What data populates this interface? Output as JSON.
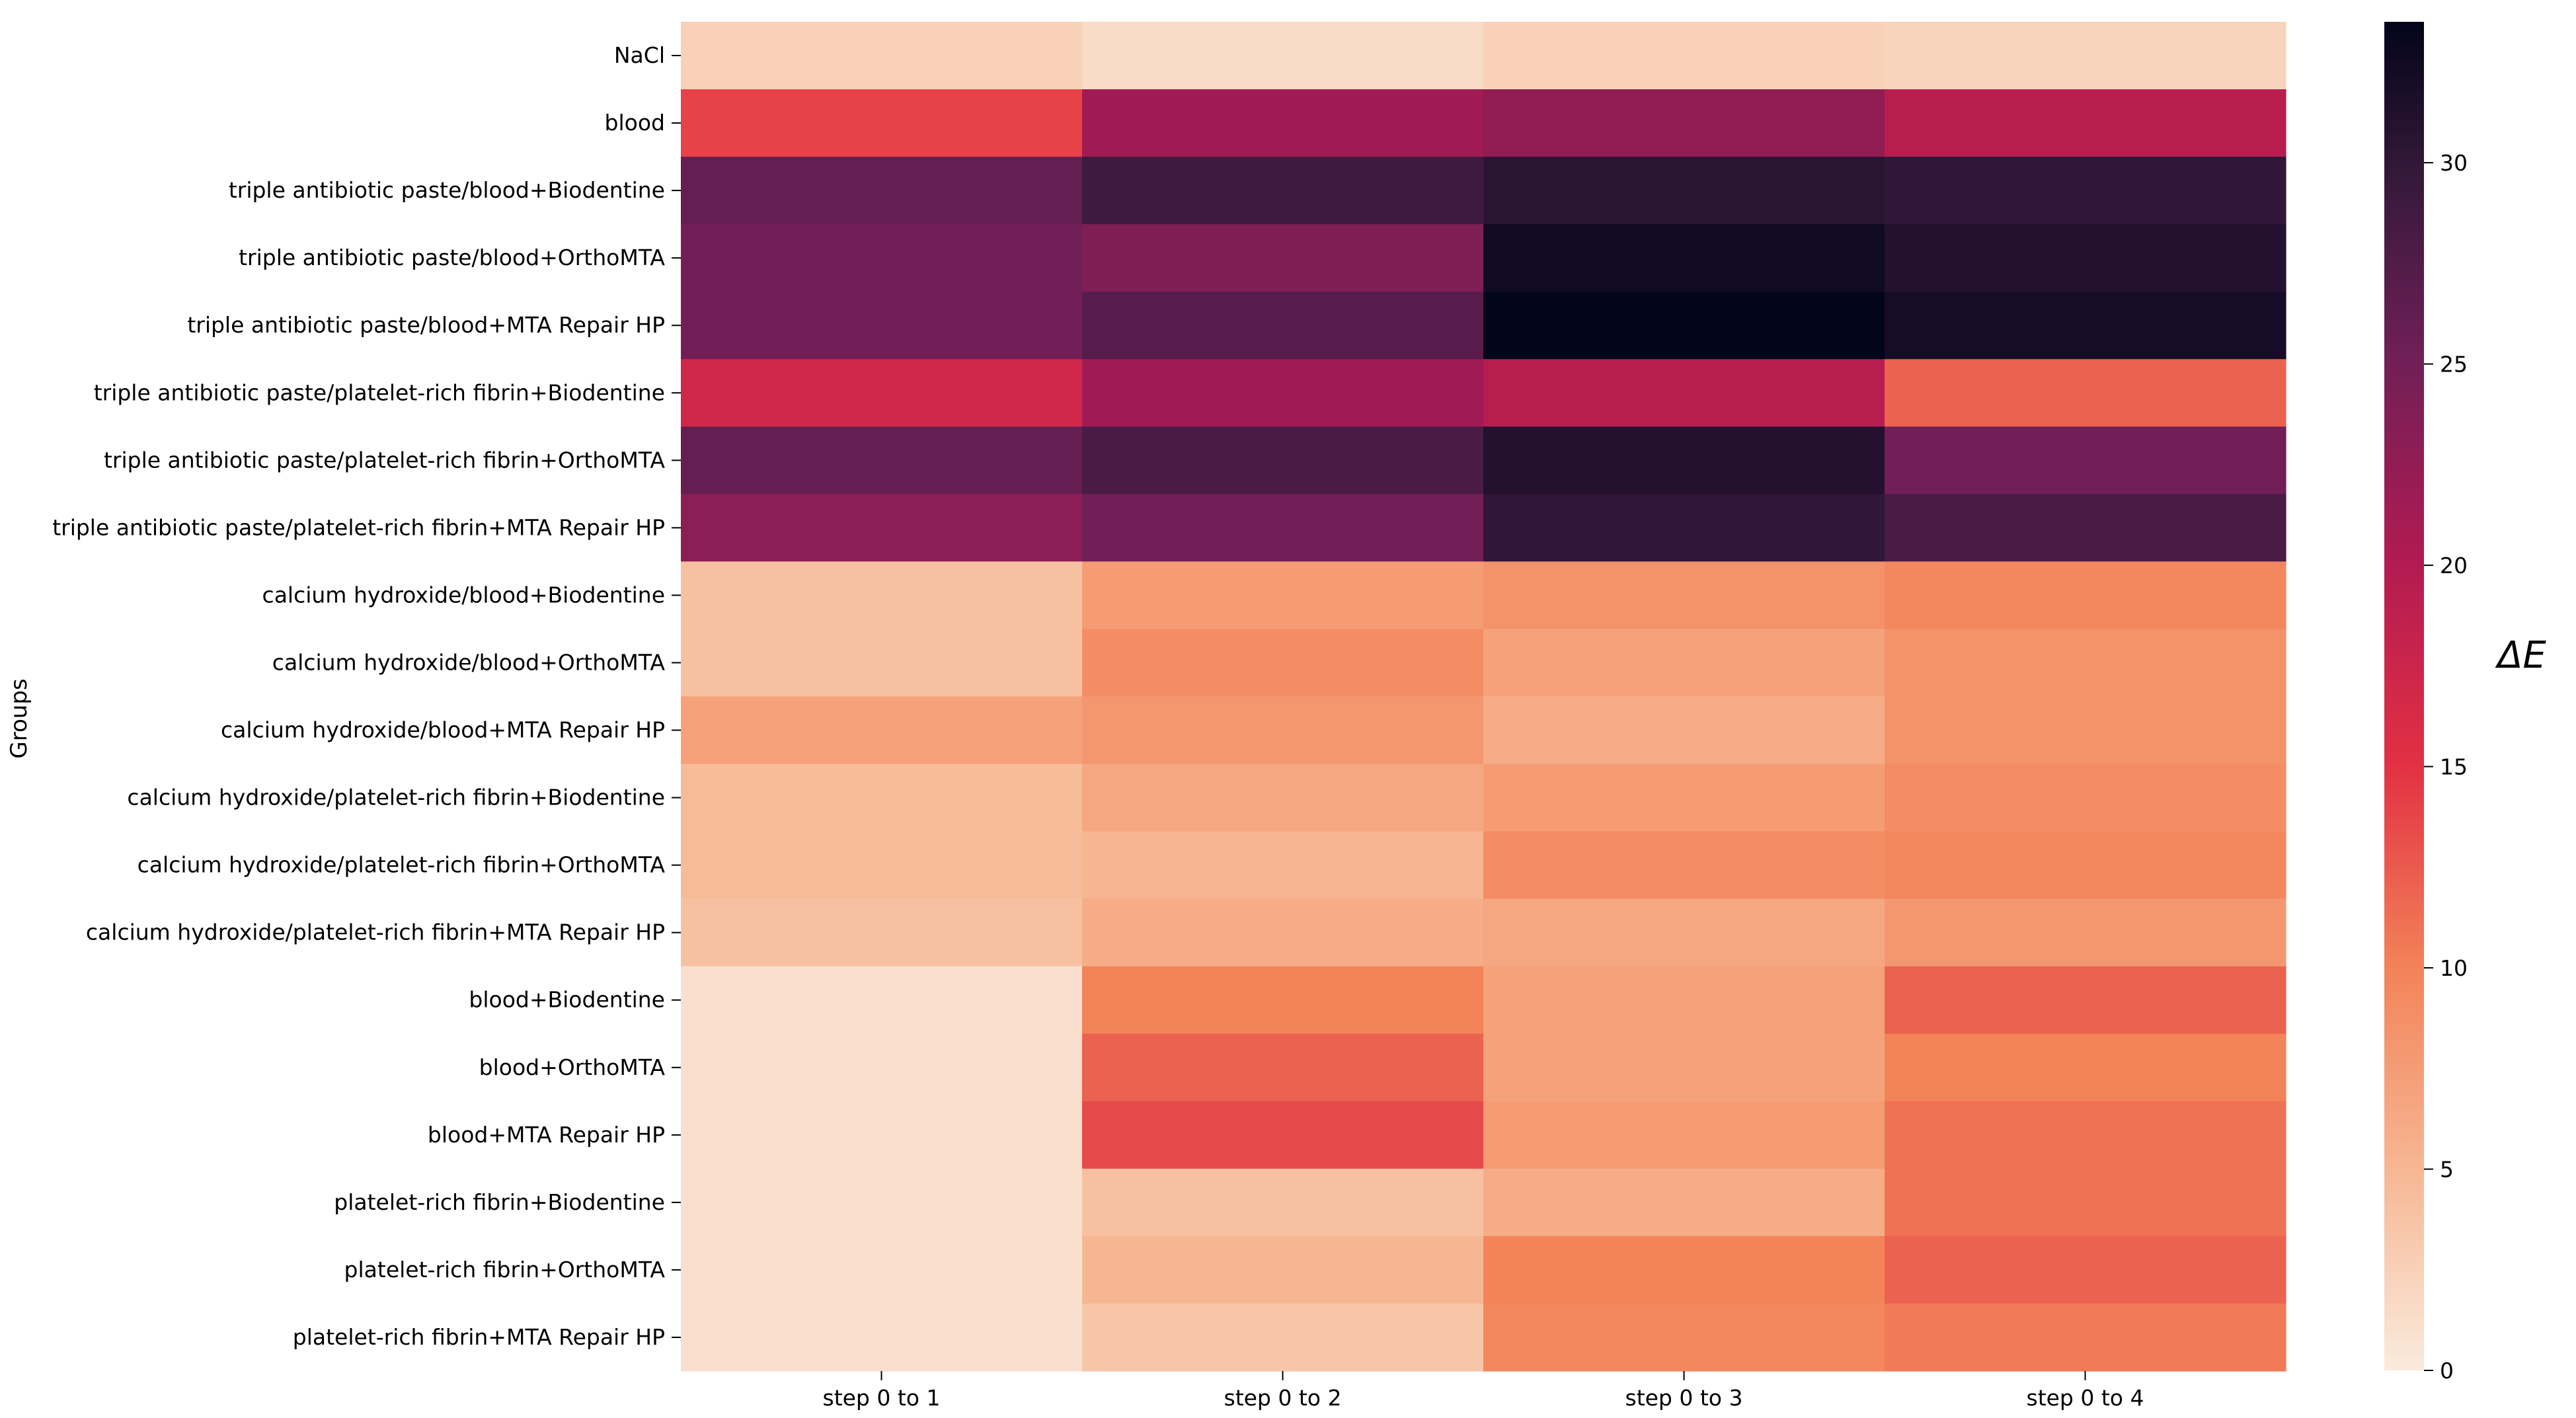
{
  "chart_data": {
    "type": "heatmap",
    "title": "",
    "xlabel": "",
    "ylabel": "Groups",
    "colorbar_label": "ΔE",
    "vmin": 0,
    "vmax": 33.5,
    "colorbar_ticks": [
      0,
      5,
      10,
      15,
      20,
      25,
      30
    ],
    "colormap": "rocket",
    "columns": [
      "step 0 to 1",
      "step 0 to 2",
      "step 0 to 3",
      "step 0 to 4"
    ],
    "rows": [
      "NaCl",
      "blood",
      "triple antibiotic paste/blood+Biodentine",
      "triple antibiotic paste/blood+OrthoMTA",
      "triple antibiotic paste/blood+MTA Repair HP",
      "triple antibiotic paste/platelet-rich fibrin+Biodentine",
      "triple antibiotic paste/platelet-rich fibrin+OrthoMTA",
      "triple antibiotic paste/platelet-rich fibrin+MTA Repair HP",
      "calcium hydroxide/blood+Biodentine",
      "calcium hydroxide/blood+OrthoMTA",
      "calcium hydroxide/blood+MTA Repair HP",
      "calcium hydroxide/platelet-rich fibrin+Biodentine",
      "calcium hydroxide/platelet-rich fibrin+OrthoMTA",
      "calcium hydroxide/platelet-rich fibrin+MTA Repair HP",
      "blood+Biodentine",
      "blood+OrthoMTA",
      "blood+MTA Repair HP",
      "platelet-rich fibrin+Biodentine",
      "platelet-rich fibrin+OrthoMTA",
      "platelet-rich fibrin+MTA Repair HP"
    ],
    "values": [
      [
        2.5,
        1.5,
        2.5,
        2.2
      ],
      [
        14.0,
        21.5,
        22.5,
        19.5
      ],
      [
        26.0,
        29.0,
        30.5,
        30.0
      ],
      [
        25.0,
        24.0,
        32.5,
        31.0
      ],
      [
        25.0,
        27.0,
        33.5,
        32.0
      ],
      [
        17.0,
        21.5,
        19.5,
        12.0
      ],
      [
        26.0,
        28.0,
        31.0,
        25.0
      ],
      [
        23.0,
        25.0,
        30.0,
        28.0
      ],
      [
        4.0,
        7.5,
        8.5,
        9.5
      ],
      [
        4.0,
        9.0,
        7.0,
        8.5
      ],
      [
        7.0,
        8.0,
        6.0,
        8.5
      ],
      [
        4.5,
        6.5,
        7.5,
        9.0
      ],
      [
        4.5,
        5.0,
        9.0,
        9.5
      ],
      [
        4.0,
        6.0,
        6.5,
        8.0
      ],
      [
        1.0,
        10.0,
        7.0,
        12.0
      ],
      [
        1.0,
        12.0,
        7.0,
        10.0
      ],
      [
        1.0,
        13.5,
        7.5,
        11.0
      ],
      [
        1.0,
        4.0,
        6.0,
        11.0
      ],
      [
        1.0,
        5.0,
        10.0,
        12.0
      ],
      [
        1.0,
        3.5,
        9.5,
        10.5
      ]
    ]
  }
}
